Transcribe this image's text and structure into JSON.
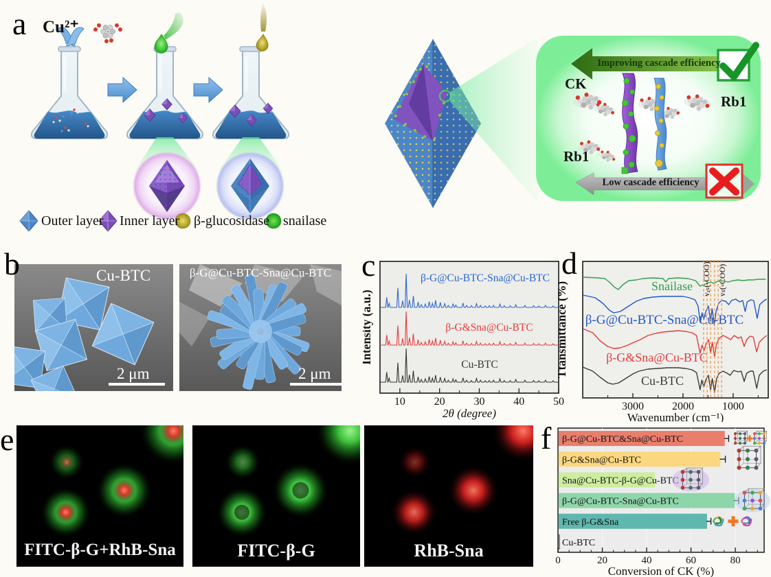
{
  "panel_letters": {
    "a": "a",
    "b": "b",
    "c": "c",
    "d": "d",
    "e": "e",
    "f": "f"
  },
  "panel_a": {
    "cu_label": "Cu²⁺",
    "improving_label": "Improving cascade efficiency",
    "low_label": "Low cascade efficiency",
    "ck_label": "CK",
    "rb1_label_right": "Rb1",
    "rb1_label_left": "Rb1",
    "legend": [
      {
        "icon": "octahedron-blue",
        "label": "Outer layer"
      },
      {
        "icon": "octahedron-purple",
        "label": "Inner layer"
      },
      {
        "icon": "sphere-yellow",
        "label": "β-glucosidase"
      },
      {
        "icon": "sphere-green",
        "label": "snailase"
      }
    ]
  },
  "panel_b": {
    "images": [
      {
        "label": "Cu-BTC",
        "scale_label": "2 μm"
      },
      {
        "label": "β-G@Cu-BTC-Sna@Cu-BTC",
        "scale_label": "2 μm"
      }
    ]
  },
  "panel_e": {
    "images": [
      {
        "label": "FITC-β-G+RhB-Sna",
        "channels": [
          "green",
          "red"
        ]
      },
      {
        "label": "FITC-β-G",
        "channels": [
          "green"
        ]
      },
      {
        "label": "RhB-Sna",
        "channels": [
          "red"
        ]
      }
    ]
  },
  "chart_data": [
    {
      "id": "xrd",
      "type": "line",
      "panel": "c",
      "xlabel": "2θ (degree)",
      "ylabel": "Intensity (a.u.)",
      "xlim": [
        5,
        50
      ],
      "xticks": [
        10,
        20,
        30,
        40,
        50
      ],
      "grid": false,
      "legend_position": "inline",
      "peaks": [
        [
          6.7,
          0.3
        ],
        [
          7.3,
          0.12
        ],
        [
          9.5,
          0.58
        ],
        [
          10.7,
          0.2
        ],
        [
          11.6,
          1.0
        ],
        [
          12.4,
          0.22
        ],
        [
          13.4,
          0.34
        ],
        [
          14.6,
          0.16
        ],
        [
          15.4,
          0.08
        ],
        [
          16.4,
          0.1
        ],
        [
          17.4,
          0.17
        ],
        [
          18.2,
          0.12
        ],
        [
          19.0,
          0.21
        ],
        [
          20.2,
          0.15
        ],
        [
          21.3,
          0.11
        ],
        [
          22.2,
          0.06
        ],
        [
          23.4,
          0.1
        ],
        [
          24.1,
          0.07
        ],
        [
          25.9,
          0.13
        ],
        [
          26.8,
          0.06
        ],
        [
          28.0,
          0.05
        ],
        [
          29.3,
          0.11
        ],
        [
          30.3,
          0.06
        ],
        [
          31.5,
          0.04
        ],
        [
          32.5,
          0.05
        ],
        [
          33.6,
          0.06
        ],
        [
          35.2,
          0.1
        ],
        [
          36.3,
          0.05
        ],
        [
          37.8,
          0.05
        ],
        [
          39.2,
          0.08
        ],
        [
          41.5,
          0.06
        ],
        [
          43.7,
          0.05
        ],
        [
          45.0,
          0.04
        ],
        [
          46.7,
          0.06
        ],
        [
          48.6,
          0.04
        ]
      ],
      "series": [
        {
          "name": "β-G@Cu-BTC-Sna@Cu-BTC",
          "color": "#2a66cc",
          "baseline": 86,
          "label_xy": [
            178,
            48
          ]
        },
        {
          "name": "β-G&Sna@Cu-BTC",
          "color": "#e23c3c",
          "baseline": 141,
          "label_xy": [
            184,
            120
          ]
        },
        {
          "name": "Cu-BTC",
          "color": "#343434",
          "baseline": 195,
          "label_xy": [
            170,
            174
          ]
        }
      ]
    },
    {
      "id": "ftir",
      "type": "line",
      "panel": "d",
      "xlabel": "Wavenumber (cm⁻¹)",
      "ylabel": "Ttansmittance (%)",
      "xlim": [
        4000,
        300
      ],
      "xticks": [
        3000,
        2000,
        1000
      ],
      "x_reversed": true,
      "grid": false,
      "dashed_marker_color": "#f0953c",
      "dashed_marker_positions": [
        1590,
        1520,
        1450,
        1370,
        1300,
        1230
      ],
      "annotations": [
        {
          "text": "νₐₛ(-COO)",
          "x": 1530
        },
        {
          "text": "νₛ(-COO)",
          "x": 1220
        }
      ],
      "series": [
        {
          "name": "Snailase",
          "color": "#2f9e49",
          "baseline": 43,
          "label_xy": [
            166,
            63
          ],
          "points": [
            [
              4000,
              1
            ],
            [
              3700,
              2
            ],
            [
              3560,
              3
            ],
            [
              3470,
              8
            ],
            [
              3360,
              16
            ],
            [
              3290,
              19
            ],
            [
              3200,
              12
            ],
            [
              3080,
              6
            ],
            [
              2930,
              5
            ],
            [
              2800,
              3
            ],
            [
              2600,
              2
            ],
            [
              2400,
              3
            ],
            [
              2340,
              8
            ],
            [
              2290,
              3
            ],
            [
              2100,
              2
            ],
            [
              1900,
              3
            ],
            [
              1750,
              6
            ],
            [
              1660,
              14
            ],
            [
              1590,
              12
            ],
            [
              1520,
              10
            ],
            [
              1450,
              8
            ],
            [
              1390,
              10
            ],
            [
              1310,
              7
            ],
            [
              1230,
              6
            ],
            [
              1100,
              8
            ],
            [
              1000,
              6
            ],
            [
              900,
              5
            ],
            [
              800,
              6
            ],
            [
              700,
              5
            ],
            [
              600,
              5
            ],
            [
              500,
              4
            ],
            [
              350,
              4
            ]
          ]
        },
        {
          "name": "β-G@Cu-BTC-Sna@Cu-BTC",
          "color": "#2257c8",
          "baseline": 68,
          "label_xy": [
            155,
            112
          ],
          "points": [
            [
              4000,
              2
            ],
            [
              3750,
              6
            ],
            [
              3600,
              14
            ],
            [
              3470,
              24
            ],
            [
              3380,
              28
            ],
            [
              3250,
              26
            ],
            [
              3080,
              18
            ],
            [
              2930,
              11
            ],
            [
              2780,
              7
            ],
            [
              2600,
              5
            ],
            [
              2400,
              4
            ],
            [
              2200,
              4
            ],
            [
              2000,
              4
            ],
            [
              1870,
              6
            ],
            [
              1760,
              9
            ],
            [
              1700,
              18
            ],
            [
              1655,
              42
            ],
            [
              1620,
              28
            ],
            [
              1585,
              38
            ],
            [
              1545,
              26
            ],
            [
              1495,
              18
            ],
            [
              1450,
              40
            ],
            [
              1420,
              22
            ],
            [
              1375,
              46
            ],
            [
              1340,
              26
            ],
            [
              1290,
              14
            ],
            [
              1230,
              10
            ],
            [
              1150,
              11
            ],
            [
              1090,
              16
            ],
            [
              1030,
              10
            ],
            [
              950,
              8
            ],
            [
              870,
              12
            ],
            [
              810,
              10
            ],
            [
              760,
              26
            ],
            [
              720,
              12
            ],
            [
              650,
              9
            ],
            [
              590,
              10
            ],
            [
              520,
              36
            ],
            [
              470,
              16
            ],
            [
              380,
              10
            ],
            [
              330,
              8
            ]
          ]
        },
        {
          "name": "β-G&Sna@Cu-BTC",
          "color": "#e23c3c",
          "baseline": 117,
          "label_xy": [
            144,
            167
          ],
          "points": [
            [
              4000,
              2
            ],
            [
              3800,
              8
            ],
            [
              3650,
              20
            ],
            [
              3500,
              28
            ],
            [
              3380,
              31
            ],
            [
              3250,
              30
            ],
            [
              3100,
              26
            ],
            [
              2950,
              21
            ],
            [
              2850,
              18
            ],
            [
              2700,
              12
            ],
            [
              2550,
              9
            ],
            [
              2400,
              7
            ],
            [
              2250,
              6
            ],
            [
              2100,
              5
            ],
            [
              1950,
              6
            ],
            [
              1820,
              8
            ],
            [
              1730,
              12
            ],
            [
              1660,
              38
            ],
            [
              1620,
              26
            ],
            [
              1580,
              34
            ],
            [
              1540,
              24
            ],
            [
              1490,
              18
            ],
            [
              1450,
              38
            ],
            [
              1415,
              22
            ],
            [
              1370,
              43
            ],
            [
              1330,
              24
            ],
            [
              1280,
              16
            ],
            [
              1200,
              12
            ],
            [
              1120,
              15
            ],
            [
              1050,
              18
            ],
            [
              980,
              12
            ],
            [
              900,
              16
            ],
            [
              840,
              14
            ],
            [
              780,
              28
            ],
            [
              730,
              18
            ],
            [
              660,
              13
            ],
            [
              600,
              14
            ],
            [
              530,
              36
            ],
            [
              480,
              22
            ],
            [
              400,
              16
            ],
            [
              330,
              12
            ]
          ]
        },
        {
          "name": "Cu-BTC",
          "color": "#3a3a3a",
          "baseline": 172,
          "label_xy": [
            152,
            201
          ],
          "points": [
            [
              4000,
              3
            ],
            [
              3800,
              9
            ],
            [
              3650,
              18
            ],
            [
              3500,
              26
            ],
            [
              3400,
              28
            ],
            [
              3280,
              26
            ],
            [
              3150,
              20
            ],
            [
              3000,
              13
            ],
            [
              2880,
              9
            ],
            [
              2700,
              6
            ],
            [
              2500,
              5
            ],
            [
              2300,
              4
            ],
            [
              2100,
              4
            ],
            [
              1950,
              5
            ],
            [
              1820,
              7
            ],
            [
              1730,
              11
            ],
            [
              1660,
              36
            ],
            [
              1625,
              22
            ],
            [
              1585,
              32
            ],
            [
              1545,
              22
            ],
            [
              1495,
              15
            ],
            [
              1450,
              36
            ],
            [
              1415,
              20
            ],
            [
              1370,
              40
            ],
            [
              1330,
              20
            ],
            [
              1280,
              12
            ],
            [
              1200,
              9
            ],
            [
              1120,
              12
            ],
            [
              1060,
              15
            ],
            [
              990,
              8
            ],
            [
              900,
              10
            ],
            [
              840,
              9
            ],
            [
              780,
              24
            ],
            [
              730,
              12
            ],
            [
              660,
              9
            ],
            [
              600,
              9
            ],
            [
              530,
              34
            ],
            [
              480,
              15
            ],
            [
              400,
              9
            ],
            [
              330,
              7
            ]
          ]
        }
      ]
    },
    {
      "id": "conversion",
      "type": "bar",
      "panel": "f",
      "orientation": "horizontal",
      "xlabel": "Conversion of CK (%)",
      "xlim": [
        0,
        93
      ],
      "xticks": [
        0,
        20,
        40,
        60,
        80
      ],
      "grid": true,
      "categories": [
        "β-G@Cu-BTC&Sna@Cu-BTC",
        "β-G&Sna@Cu-BTC",
        "Sna@Cu-BTC-β-G@Cu-BTC",
        "β-G@Cu-BTC-Sna@Cu-BTC",
        "Free β-G&Sna",
        "Cu-BTC"
      ],
      "values": [
        75,
        73,
        43.5,
        79.5,
        67,
        0.6
      ],
      "errors": [
        2,
        2.5,
        0,
        2,
        2,
        0
      ],
      "bar_colors": [
        "#e97e6d",
        "#fbd77f",
        "#cdeda0",
        "#8fd5aa",
        "#5fb7ae",
        "#777777"
      ],
      "icons": [
        "two-cubes-plus",
        "cube",
        "cube-shell",
        "cube-dots",
        "enzymes-plus",
        "none"
      ]
    }
  ]
}
